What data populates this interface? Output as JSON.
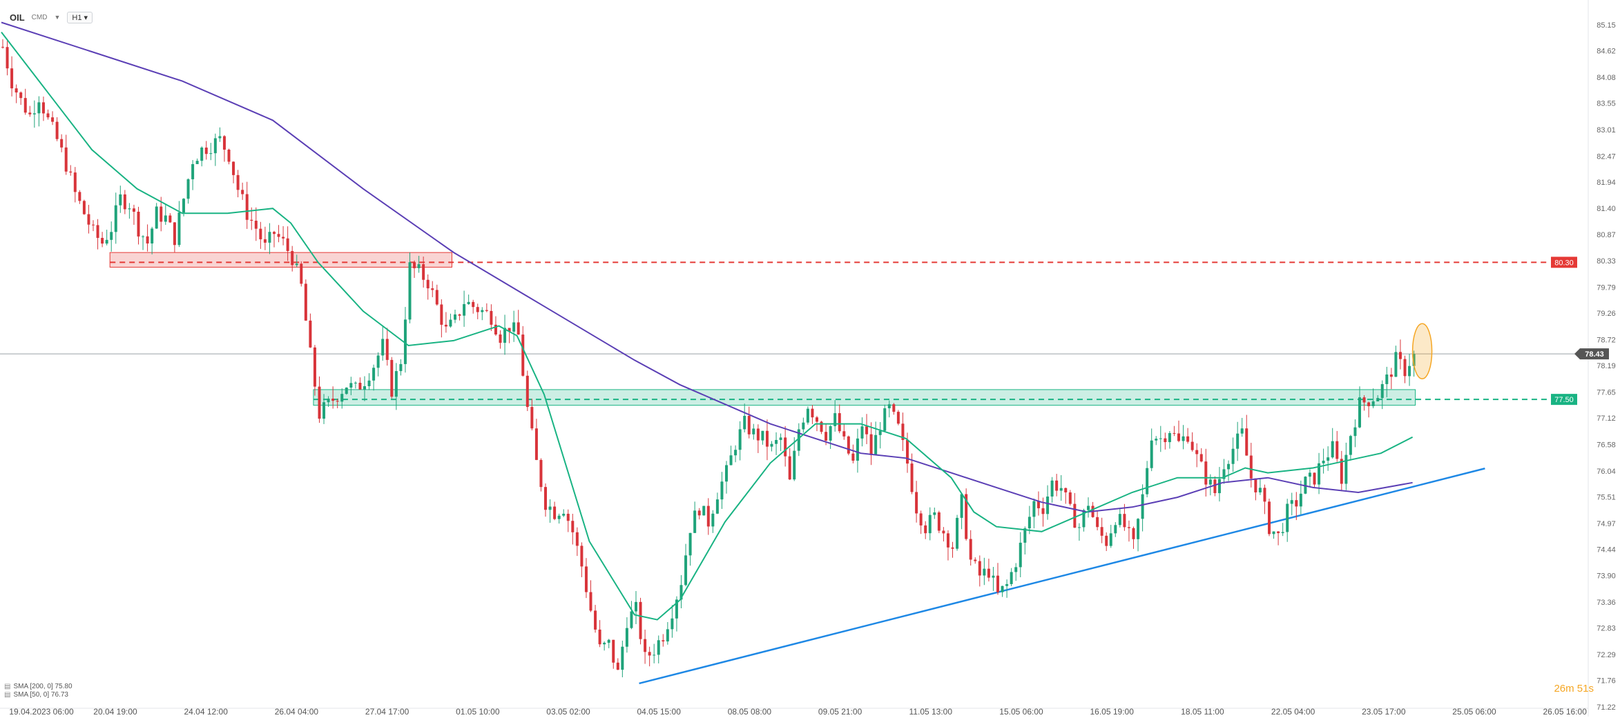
{
  "header": {
    "symbol": "OIL",
    "symbol_sub": "CMD",
    "timeframe": "H1"
  },
  "legend": {
    "sma200": "SMA [200, 0] 75.80",
    "sma50": "SMA [50, 0] 76.73"
  },
  "countdown": "26m 51s",
  "colors": {
    "up": "#1fa37a",
    "down": "#d8343a",
    "sma200": "#5b3fb5",
    "sma50": "#19b383",
    "trendline": "#1e88e5",
    "resistance": "#e53935",
    "support": "#19b383",
    "current_price": "#555555",
    "highlight": "#f5a623"
  },
  "chart_data": {
    "type": "candlestick",
    "title": "",
    "ylim": [
      71.22,
      85.5
    ],
    "y_ticks": [
      "85.15",
      "84.62",
      "84.08",
      "83.55",
      "83.01",
      "82.47",
      "81.94",
      "81.40",
      "80.87",
      "80.33",
      "79.79",
      "79.26",
      "78.72",
      "78.19",
      "77.65",
      "77.12",
      "76.58",
      "76.04",
      "75.51",
      "74.97",
      "74.44",
      "73.90",
      "73.36",
      "72.83",
      "72.29",
      "71.76",
      "71.22"
    ],
    "x_ticks": [
      "19.04.2023 06:00",
      "20.04 19:00",
      "24.04 12:00",
      "26.04 04:00",
      "27.04 17:00",
      "01.05 10:00",
      "03.05 02:00",
      "04.05 15:00",
      "08.05 08:00",
      "09.05 21:00",
      "11.05 13:00",
      "15.05 06:00",
      "16.05 19:00",
      "18.05 11:00",
      "22.05 04:00",
      "23.05 17:00",
      "25.05 06:00",
      "26.05 16:00"
    ],
    "price_path": [
      [
        0,
        84.7
      ],
      [
        2,
        84.0
      ],
      [
        4,
        83.6
      ],
      [
        6,
        83.3
      ],
      [
        8,
        83.7
      ],
      [
        10,
        83.2
      ],
      [
        12,
        82.8
      ],
      [
        14,
        82.3
      ],
      [
        16,
        81.7
      ],
      [
        18,
        81.3
      ],
      [
        20,
        80.9
      ],
      [
        22,
        80.7
      ],
      [
        24,
        81.0
      ],
      [
        26,
        81.6
      ],
      [
        28,
        81.5
      ],
      [
        30,
        81.0
      ],
      [
        32,
        80.7
      ],
      [
        34,
        81.3
      ],
      [
        36,
        81.2
      ],
      [
        38,
        80.8
      ],
      [
        40,
        81.6
      ],
      [
        42,
        82.4
      ],
      [
        44,
        82.6
      ],
      [
        46,
        82.7
      ],
      [
        48,
        82.8
      ],
      [
        50,
        82.5
      ],
      [
        52,
        81.8
      ],
      [
        54,
        81.3
      ],
      [
        56,
        81.0
      ],
      [
        58,
        80.6
      ],
      [
        60,
        80.9
      ],
      [
        62,
        80.7
      ],
      [
        64,
        80.4
      ],
      [
        66,
        79.8
      ],
      [
        68,
        78.4
      ],
      [
        70,
        77.2
      ],
      [
        72,
        77.4
      ],
      [
        74,
        77.6
      ],
      [
        76,
        77.8
      ],
      [
        78,
        77.7
      ],
      [
        80,
        77.9
      ],
      [
        82,
        78.2
      ],
      [
        84,
        78.6
      ],
      [
        86,
        77.7
      ],
      [
        88,
        78.3
      ],
      [
        90,
        80.2
      ],
      [
        92,
        80.1
      ],
      [
        94,
        79.9
      ],
      [
        96,
        79.4
      ],
      [
        98,
        78.9
      ],
      [
        100,
        79.1
      ],
      [
        102,
        79.5
      ],
      [
        104,
        79.4
      ],
      [
        106,
        79.3
      ],
      [
        108,
        79.2
      ],
      [
        110,
        78.8
      ],
      [
        112,
        79.0
      ],
      [
        114,
        78.8
      ],
      [
        116,
        77.3
      ],
      [
        118,
        76.2
      ],
      [
        120,
        75.4
      ],
      [
        122,
        75.2
      ],
      [
        124,
        75.3
      ],
      [
        126,
        74.8
      ],
      [
        128,
        74.1
      ],
      [
        130,
        73.2
      ],
      [
        132,
        72.4
      ],
      [
        134,
        72.5
      ],
      [
        136,
        71.9
      ],
      [
        138,
        73.0
      ],
      [
        140,
        73.2
      ],
      [
        142,
        72.2
      ],
      [
        144,
        72.4
      ],
      [
        146,
        72.7
      ],
      [
        148,
        73.2
      ],
      [
        150,
        73.8
      ],
      [
        152,
        74.9
      ],
      [
        154,
        75.3
      ],
      [
        156,
        75.0
      ],
      [
        158,
        75.6
      ],
      [
        160,
        76.0
      ],
      [
        162,
        76.6
      ],
      [
        164,
        77.0
      ],
      [
        166,
        76.8
      ],
      [
        168,
        76.7
      ],
      [
        170,
        76.5
      ],
      [
        172,
        76.7
      ],
      [
        174,
        75.8
      ],
      [
        176,
        76.9
      ],
      [
        178,
        77.4
      ],
      [
        180,
        77.1
      ],
      [
        182,
        76.8
      ],
      [
        184,
        77.1
      ],
      [
        186,
        76.6
      ],
      [
        188,
        76.2
      ],
      [
        190,
        77.0
      ],
      [
        192,
        76.4
      ],
      [
        194,
        77.0
      ],
      [
        196,
        77.3
      ],
      [
        198,
        76.9
      ],
      [
        200,
        76.2
      ],
      [
        202,
        75.3
      ],
      [
        204,
        74.9
      ],
      [
        206,
        75.1
      ],
      [
        208,
        74.8
      ],
      [
        210,
        74.5
      ],
      [
        212,
        75.4
      ],
      [
        214,
        74.2
      ],
      [
        216,
        73.9
      ],
      [
        218,
        74.0
      ],
      [
        220,
        73.5
      ],
      [
        222,
        73.7
      ],
      [
        224,
        74.2
      ],
      [
        226,
        74.8
      ],
      [
        228,
        75.4
      ],
      [
        230,
        75.3
      ],
      [
        232,
        75.8
      ],
      [
        234,
        75.7
      ],
      [
        236,
        75.2
      ],
      [
        238,
        74.9
      ],
      [
        240,
        75.4
      ],
      [
        242,
        74.8
      ],
      [
        244,
        74.6
      ],
      [
        246,
        75.1
      ],
      [
        248,
        74.9
      ],
      [
        250,
        74.5
      ],
      [
        252,
        75.5
      ],
      [
        254,
        76.8
      ],
      [
        256,
        76.7
      ],
      [
        258,
        76.9
      ],
      [
        260,
        76.6
      ],
      [
        262,
        76.8
      ],
      [
        264,
        76.3
      ],
      [
        266,
        75.9
      ],
      [
        268,
        75.6
      ],
      [
        270,
        76.2
      ],
      [
        272,
        76.5
      ],
      [
        274,
        76.8
      ],
      [
        276,
        75.9
      ],
      [
        278,
        75.6
      ],
      [
        280,
        74.9
      ],
      [
        282,
        74.7
      ],
      [
        284,
        75.2
      ],
      [
        286,
        75.4
      ],
      [
        288,
        75.8
      ],
      [
        290,
        75.9
      ],
      [
        292,
        76.3
      ],
      [
        294,
        76.5
      ],
      [
        296,
        75.9
      ],
      [
        298,
        76.8
      ],
      [
        300,
        77.4
      ],
      [
        302,
        77.5
      ],
      [
        304,
        77.6
      ],
      [
        306,
        77.9
      ],
      [
        308,
        78.3
      ],
      [
        310,
        78.1
      ],
      [
        312,
        78.43
      ]
    ],
    "series": [
      {
        "name": "SMA [200, 0]",
        "x": [
          0,
          20,
          40,
          60,
          80,
          100,
          120,
          140,
          150,
          160,
          170,
          180,
          190,
          200,
          210,
          220,
          230,
          240,
          250,
          260,
          270,
          280,
          290,
          300,
          312
        ],
        "y": [
          85.2,
          84.6,
          84.0,
          83.2,
          81.8,
          80.5,
          79.4,
          78.3,
          77.8,
          77.4,
          77.0,
          76.7,
          76.4,
          76.3,
          76.0,
          75.7,
          75.4,
          75.2,
          75.3,
          75.5,
          75.8,
          75.9,
          75.7,
          75.6,
          75.8
        ]
      },
      {
        "name": "SMA [50, 0]",
        "x": [
          0,
          10,
          20,
          30,
          40,
          50,
          60,
          64,
          70,
          80,
          90,
          100,
          110,
          114,
          120,
          130,
          140,
          145,
          150,
          160,
          170,
          175,
          180,
          190,
          200,
          210,
          215,
          220,
          230,
          240,
          250,
          260,
          270,
          275,
          280,
          290,
          300,
          305,
          312
        ],
        "y": [
          85.0,
          83.8,
          82.6,
          81.8,
          81.3,
          81.3,
          81.4,
          81.1,
          80.3,
          79.3,
          78.6,
          78.7,
          79.0,
          78.8,
          77.6,
          74.6,
          73.1,
          73.0,
          73.4,
          75.0,
          76.2,
          76.6,
          77.0,
          77.0,
          76.7,
          75.9,
          75.2,
          74.9,
          74.8,
          75.2,
          75.6,
          75.9,
          75.9,
          76.1,
          76.0,
          76.1,
          76.3,
          76.4,
          76.73
        ]
      }
    ],
    "annotations": [
      {
        "type": "hline",
        "label": "80.30",
        "value": 80.3,
        "style": "dashed",
        "color": "#e53935"
      },
      {
        "type": "zone",
        "name": "resistance",
        "value_low": 80.2,
        "value_high": 80.5,
        "x_from": 24,
        "x_to": 99
      },
      {
        "type": "hline",
        "label": "77.50",
        "value": 77.5,
        "style": "dashed",
        "color": "#19b383"
      },
      {
        "type": "zone",
        "name": "support",
        "value_low": 77.38,
        "value_high": 77.7,
        "x_from": 69,
        "x_to": 312
      },
      {
        "type": "trendline",
        "from": [
          141,
          71.7
        ],
        "to": [
          328,
          76.09
        ]
      },
      {
        "type": "current_price",
        "label": "78.43",
        "value": 78.43
      },
      {
        "type": "highlight_ellipse",
        "x": 312,
        "value": 78.4
      }
    ]
  }
}
